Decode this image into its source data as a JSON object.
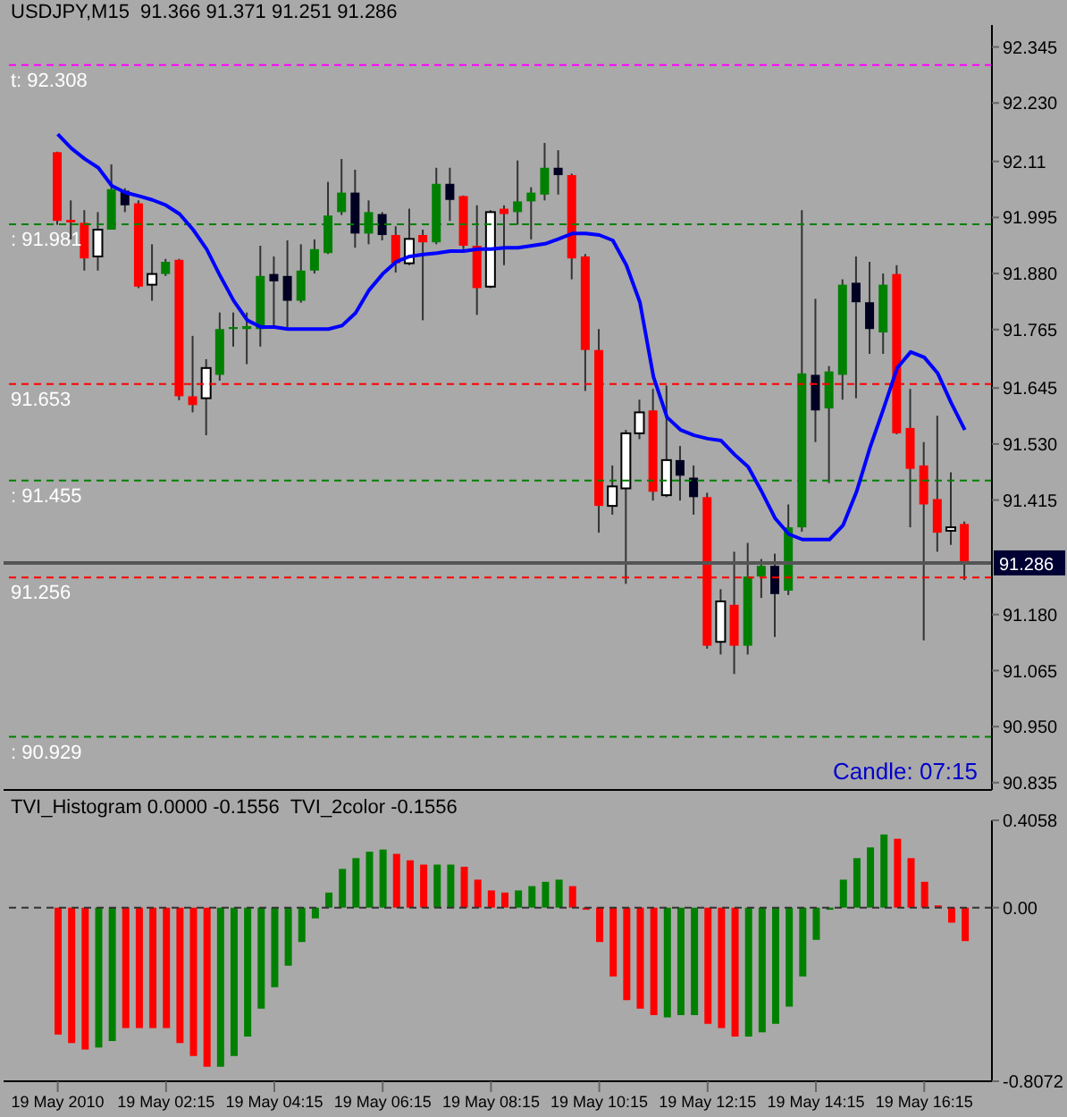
{
  "chart_data": [
    {
      "type": "candlestick",
      "title": "USDJPY,M15  91.366 91.371 91.251 91.286",
      "x": [
        "2010-05-19T00:15",
        "2010-05-19T00:30",
        "2010-05-19T00:45",
        "2010-05-19T01:00",
        "2010-05-19T01:15",
        "2010-05-19T01:30",
        "2010-05-19T01:45",
        "2010-05-19T02:00",
        "2010-05-19T02:15",
        "2010-05-19T02:30",
        "2010-05-19T02:45",
        "2010-05-19T03:00",
        "2010-05-19T03:15",
        "2010-05-19T03:30",
        "2010-05-19T03:45",
        "2010-05-19T04:00",
        "2010-05-19T04:15",
        "2010-05-19T04:30",
        "2010-05-19T04:45",
        "2010-05-19T05:00",
        "2010-05-19T05:15",
        "2010-05-19T05:30",
        "2010-05-19T05:45",
        "2010-05-19T06:00",
        "2010-05-19T06:15",
        "2010-05-19T06:30",
        "2010-05-19T06:45",
        "2010-05-19T07:00",
        "2010-05-19T07:15",
        "2010-05-19T07:30",
        "2010-05-19T07:45",
        "2010-05-19T08:00",
        "2010-05-19T08:15",
        "2010-05-19T08:30",
        "2010-05-19T08:45",
        "2010-05-19T09:00",
        "2010-05-19T09:15",
        "2010-05-19T09:30",
        "2010-05-19T09:45",
        "2010-05-19T10:00",
        "2010-05-19T10:15",
        "2010-05-19T10:30",
        "2010-05-19T10:45",
        "2010-05-19T11:00",
        "2010-05-19T11:15",
        "2010-05-19T11:30",
        "2010-05-19T11:45",
        "2010-05-19T12:00",
        "2010-05-19T12:15",
        "2010-05-19T12:30",
        "2010-05-19T12:45",
        "2010-05-19T13:00",
        "2010-05-19T13:15",
        "2010-05-19T13:30",
        "2010-05-19T13:45",
        "2010-05-19T14:00",
        "2010-05-19T14:15",
        "2010-05-19T14:30",
        "2010-05-19T14:45",
        "2010-05-19T15:00",
        "2010-05-19T15:15",
        "2010-05-19T15:30",
        "2010-05-19T15:45",
        "2010-05-19T16:00",
        "2010-05-19T16:15",
        "2010-05-19T16:30",
        "2010-05-19T16:45",
        "2010-05-19T17:00"
      ],
      "ohlc": [
        [
          92.129,
          92.13,
          91.98,
          91.988
        ],
        [
          91.99,
          92.03,
          91.95,
          91.985
        ],
        [
          91.984,
          92.01,
          91.886,
          91.911
        ],
        [
          91.915,
          92.006,
          91.886,
          91.97
        ],
        [
          91.97,
          92.104,
          91.97,
          92.053
        ],
        [
          92.05,
          92.055,
          92.006,
          92.02
        ],
        [
          92.024,
          92.03,
          91.85,
          91.853
        ],
        [
          91.857,
          91.94,
          91.824,
          91.879
        ],
        [
          91.879,
          91.91,
          91.875,
          91.904
        ],
        [
          91.908,
          91.91,
          91.62,
          91.628
        ],
        [
          91.628,
          91.752,
          91.595,
          91.61
        ],
        [
          91.624,
          91.704,
          91.548,
          91.686
        ],
        [
          91.672,
          91.8,
          91.66,
          91.766
        ],
        [
          91.766,
          91.8,
          91.73,
          91.77
        ],
        [
          91.766,
          91.8,
          91.694,
          91.772
        ],
        [
          91.766,
          91.937,
          91.73,
          91.875
        ],
        [
          91.879,
          91.915,
          91.77,
          91.864
        ],
        [
          91.875,
          91.948,
          91.77,
          91.824
        ],
        [
          91.824,
          91.94,
          91.82,
          91.886
        ],
        [
          91.886,
          91.95,
          91.88,
          91.93
        ],
        [
          91.922,
          92.068,
          91.92,
          91.999
        ],
        [
          92.006,
          92.115,
          92,
          92.046
        ],
        [
          92.046,
          92.093,
          91.933,
          91.962
        ],
        [
          91.962,
          92.03,
          91.94,
          92.006
        ],
        [
          92.002,
          92.006,
          91.948,
          91.959
        ],
        [
          91.959,
          91.977,
          91.882,
          91.901
        ],
        [
          91.901,
          92.013,
          91.897,
          91.951
        ],
        [
          91.959,
          91.97,
          91.784,
          91.944
        ],
        [
          91.944,
          92.097,
          91.94,
          92.064
        ],
        [
          92.064,
          92.097,
          91.988,
          92.031
        ],
        [
          92.039,
          92.04,
          91.93,
          91.937
        ],
        [
          91.937,
          92.02,
          91.795,
          91.85
        ],
        [
          91.853,
          92.01,
          91.85,
          92.006
        ],
        [
          92.013,
          92.02,
          91.897,
          92.002
        ],
        [
          92.006,
          92.112,
          91.98,
          92.028
        ],
        [
          92.028,
          92.057,
          91.95,
          92.046
        ],
        [
          92.042,
          92.148,
          92.03,
          92.097
        ],
        [
          92.097,
          92.133,
          92.042,
          92.082
        ],
        [
          92.082,
          92.085,
          91.868,
          91.911
        ],
        [
          91.915,
          91.92,
          91.639,
          91.723
        ],
        [
          91.723,
          91.766,
          91.348,
          91.403
        ],
        [
          91.403,
          91.486,
          91.385,
          91.443
        ],
        [
          91.439,
          91.559,
          91.243,
          91.552
        ],
        [
          91.552,
          91.621,
          91.54,
          91.595
        ],
        [
          91.599,
          91.643,
          91.414,
          91.432
        ],
        [
          91.425,
          91.65,
          91.421,
          91.497
        ],
        [
          91.497,
          91.526,
          91.414,
          91.465
        ],
        [
          91.461,
          91.486,
          91.385,
          91.421
        ],
        [
          91.421,
          91.43,
          91.11,
          91.116
        ],
        [
          91.124,
          91.232,
          91.098,
          91.207
        ],
        [
          91.2,
          91.309,
          91.058,
          91.116
        ],
        [
          91.116,
          91.327,
          91.098,
          91.258
        ],
        [
          91.258,
          91.294,
          91.214,
          91.28
        ],
        [
          91.28,
          91.305,
          91.134,
          91.222
        ],
        [
          91.229,
          91.406,
          91.22,
          91.359
        ],
        [
          91.359,
          92.01,
          91.35,
          91.675
        ],
        [
          91.672,
          91.828,
          91.534,
          91.599
        ],
        [
          91.603,
          91.69,
          91.45,
          91.679
        ],
        [
          91.672,
          91.868,
          91.621,
          91.857
        ],
        [
          91.861,
          91.915,
          91.624,
          91.821
        ],
        [
          91.821,
          91.904,
          91.715,
          91.766
        ],
        [
          91.759,
          91.88,
          91.715,
          91.857
        ],
        [
          91.879,
          91.897,
          91.55,
          91.552
        ],
        [
          91.563,
          91.643,
          91.359,
          91.479
        ],
        [
          91.486,
          91.534,
          91.127,
          91.406
        ],
        [
          91.417,
          91.588,
          91.309,
          91.348
        ],
        [
          91.352,
          91.472,
          91.323,
          91.359
        ],
        [
          91.366,
          91.371,
          91.251,
          91.286
        ]
      ],
      "colors": [
        "#ff0000",
        "#ff0000",
        "#ff0000",
        "#ffffff",
        "#008000",
        "#000022",
        "#ff0000",
        "#ffffff",
        "#008000",
        "#ff0000",
        "#ff0000",
        "#ffffff",
        "#008000",
        "#008000",
        "#008000",
        "#008000",
        "#000022",
        "#000022",
        "#008000",
        "#008000",
        "#008000",
        "#008000",
        "#000022",
        "#008000",
        "#000022",
        "#ff0000",
        "#ffffff",
        "#ff0000",
        "#008000",
        "#000022",
        "#ff0000",
        "#ff0000",
        "#ffffff",
        "#ff0000",
        "#008000",
        "#008000",
        "#008000",
        "#000022",
        "#ff0000",
        "#ff0000",
        "#ff0000",
        "#ffffff",
        "#ffffff",
        "#ffffff",
        "#ff0000",
        "#ffffff",
        "#000022",
        "#000022",
        "#ff0000",
        "#ffffff",
        "#ff0000",
        "#008000",
        "#008000",
        "#000022",
        "#008000",
        "#008000",
        "#000022",
        "#008000",
        "#008000",
        "#000022",
        "#000022",
        "#008000",
        "#ff0000",
        "#ff0000",
        "#ff0000",
        "#ff0000",
        "#ffffff",
        "#ff0000"
      ],
      "series": [
        {
          "type": "line",
          "color": "#0000ff",
          "values": [
            92.166,
            92.137,
            92.115,
            92.097,
            92.06,
            92.046,
            92.039,
            92.031,
            92.02,
            92.002,
            91.97,
            91.93,
            91.875,
            91.824,
            91.784,
            91.77,
            91.77,
            91.766,
            91.766,
            91.766,
            91.766,
            91.773,
            91.799,
            91.846,
            91.879,
            91.904,
            91.915,
            91.919,
            91.922,
            91.926,
            91.926,
            91.93,
            91.93,
            91.933,
            91.933,
            91.937,
            91.941,
            91.951,
            91.962,
            91.962,
            91.959,
            91.948,
            91.897,
            91.821,
            91.668,
            91.585,
            91.559,
            91.548,
            91.541,
            91.537,
            91.508,
            91.483,
            91.432,
            91.377,
            91.345,
            91.334,
            91.334,
            91.334,
            91.363,
            91.432,
            91.523,
            91.603,
            91.686,
            91.719,
            91.708,
            91.675,
            91.614,
            91.559
          ]
        }
      ],
      "xlim": [
        "2010-05-18T23:15",
        "2010-05-19T17:30"
      ],
      "ylim": [
        90.82,
        92.39
      ],
      "yticks": [
        92.345,
        {
          "value": 92.23,
          "label": "92.230"
        },
        92.11,
        91.995,
        {
          "value": 91.88,
          "label": "91.880"
        },
        91.765,
        91.645,
        {
          "value": 91.53,
          "label": "91.530"
        },
        91.415,
        {
          "value": 91.18,
          "label": "91.180"
        },
        91.065,
        {
          "value": 90.95,
          "label": "90.950"
        },
        90.835
      ],
      "tick_labels": "y",
      "ref_lines": [
        {
          "axis": "y",
          "value": 92.308,
          "label": "t: 92.308",
          "color": "#ff00ff",
          "line_style": "dashed"
        },
        {
          "axis": "y",
          "value": 91.981,
          "label": ": 91.981",
          "color": "#008000",
          "line_style": "dashed"
        },
        {
          "axis": "y",
          "value": 91.653,
          "label": "91.653",
          "color": "#ff0000",
          "line_style": "dashed"
        },
        {
          "axis": "y",
          "value": 91.455,
          "label": ": 91.455",
          "color": "#008000",
          "line_style": "dashed"
        },
        {
          "axis": "y",
          "value": 91.286,
          "label": "91.286",
          "color": "#555555",
          "line_style": "solid"
        },
        {
          "axis": "y",
          "value": 91.256,
          "label": "91.256",
          "color": "#ff0000",
          "line_style": "dashed"
        },
        {
          "axis": "y",
          "value": 90.929,
          "label": ": 90.929",
          "color": "#008000",
          "line_style": "dashed"
        }
      ],
      "annotations": [
        "Candle: 07:15"
      ]
    },
    {
      "type": "bar",
      "title": "TVI_Histogram 0.0000 -0.1556  TVI_2color -0.1556",
      "x": [
        "2010-05-19T00:15",
        "2010-05-19T00:30",
        "2010-05-19T00:45",
        "2010-05-19T01:00",
        "2010-05-19T01:15",
        "2010-05-19T01:30",
        "2010-05-19T01:45",
        "2010-05-19T02:00",
        "2010-05-19T02:15",
        "2010-05-19T02:30",
        "2010-05-19T02:45",
        "2010-05-19T03:00",
        "2010-05-19T03:15",
        "2010-05-19T03:30",
        "2010-05-19T03:45",
        "2010-05-19T04:00",
        "2010-05-19T04:15",
        "2010-05-19T04:30",
        "2010-05-19T04:45",
        "2010-05-19T05:00",
        "2010-05-19T05:15",
        "2010-05-19T05:30",
        "2010-05-19T05:45",
        "2010-05-19T06:00",
        "2010-05-19T06:15",
        "2010-05-19T06:30",
        "2010-05-19T06:45",
        "2010-05-19T07:00",
        "2010-05-19T07:15",
        "2010-05-19T07:30",
        "2010-05-19T07:45",
        "2010-05-19T08:00",
        "2010-05-19T08:15",
        "2010-05-19T08:30",
        "2010-05-19T08:45",
        "2010-05-19T09:00",
        "2010-05-19T09:15",
        "2010-05-19T09:30",
        "2010-05-19T09:45",
        "2010-05-19T10:00",
        "2010-05-19T10:15",
        "2010-05-19T10:30",
        "2010-05-19T10:45",
        "2010-05-19T11:00",
        "2010-05-19T11:15",
        "2010-05-19T11:30",
        "2010-05-19T11:45",
        "2010-05-19T12:00",
        "2010-05-19T12:15",
        "2010-05-19T12:30",
        "2010-05-19T12:45",
        "2010-05-19T13:00",
        "2010-05-19T13:15",
        "2010-05-19T13:30",
        "2010-05-19T13:45",
        "2010-05-19T14:00",
        "2010-05-19T14:15",
        "2010-05-19T14:30",
        "2010-05-19T14:45",
        "2010-05-19T15:00",
        "2010-05-19T15:15",
        "2010-05-19T15:30",
        "2010-05-19T15:45",
        "2010-05-19T16:00",
        "2010-05-19T16:15",
        "2010-05-19T16:30",
        "2010-05-19T16:45",
        "2010-05-19T17:00"
      ],
      "series": [
        {
          "type": "bar",
          "values": [
            -0.59,
            -0.63,
            -0.66,
            -0.65,
            -0.62,
            -0.56,
            -0.56,
            -0.56,
            -0.56,
            -0.63,
            -0.69,
            -0.74,
            -0.74,
            -0.69,
            -0.6,
            -0.47,
            -0.37,
            -0.27,
            -0.16,
            -0.05,
            0.07,
            0.18,
            0.23,
            0.26,
            0.27,
            0.25,
            0.22,
            0.2,
            0.2,
            0.2,
            0.19,
            0.13,
            0.08,
            0.07,
            0.08,
            0.1,
            0.12,
            0.13,
            0.1,
            -0.01,
            -0.16,
            -0.32,
            -0.43,
            -0.47,
            -0.5,
            -0.51,
            -0.5,
            -0.5,
            -0.54,
            -0.56,
            -0.6,
            -0.6,
            -0.58,
            -0.54,
            -0.46,
            -0.32,
            -0.15,
            -0.01,
            0.13,
            0.23,
            0.28,
            0.34,
            0.32,
            0.23,
            0.12,
            0.01,
            -0.07,
            -0.1556
          ],
          "colors": [
            "#ff0000",
            "#ff0000",
            "#ff0000",
            "#008000",
            "#008000",
            "#ff0000",
            "#ff0000",
            "#ff0000",
            "#ff0000",
            "#ff0000",
            "#ff0000",
            "#ff0000",
            "#008000",
            "#008000",
            "#008000",
            "#008000",
            "#008000",
            "#008000",
            "#008000",
            "#008000",
            "#008000",
            "#008000",
            "#008000",
            "#008000",
            "#008000",
            "#ff0000",
            "#ff0000",
            "#ff0000",
            "#008000",
            "#008000",
            "#ff0000",
            "#ff0000",
            "#ff0000",
            "#ff0000",
            "#008000",
            "#008000",
            "#008000",
            "#008000",
            "#ff0000",
            "#ff0000",
            "#ff0000",
            "#ff0000",
            "#ff0000",
            "#ff0000",
            "#ff0000",
            "#008000",
            "#008000",
            "#008000",
            "#ff0000",
            "#ff0000",
            "#ff0000",
            "#008000",
            "#008000",
            "#008000",
            "#008000",
            "#008000",
            "#008000",
            "#008000",
            "#008000",
            "#008000",
            "#008000",
            "#008000",
            "#ff0000",
            "#ff0000",
            "#ff0000",
            "#ff0000",
            "#ff0000",
            "#ff0000"
          ]
        }
      ],
      "xlim": [
        "2010-05-18T23:15",
        "2010-05-19T17:30"
      ],
      "xticks": [
        {
          "value": "2010-05-19T00:15",
          "label": "19 May 2010"
        },
        {
          "value": "2010-05-19T02:15",
          "label": "19 May 02:15"
        },
        {
          "value": "2010-05-19T04:15",
          "label": "19 May 04:15"
        },
        {
          "value": "2010-05-19T06:15",
          "label": "19 May 06:15"
        },
        {
          "value": "2010-05-19T08:15",
          "label": "19 May 08:15"
        },
        {
          "value": "2010-05-19T10:15",
          "label": "19 May 10:15"
        },
        {
          "value": "2010-05-19T12:15",
          "label": "19 May 12:15"
        },
        {
          "value": "2010-05-19T14:15",
          "label": "19 May 14:15"
        },
        {
          "value": "2010-05-19T16:15",
          "label": "19 May 16:15"
        }
      ],
      "ylim": [
        -0.8072,
        0.4058
      ],
      "yticks": [
        0.4058,
        {
          "value": 0,
          "label": "0.00"
        },
        -0.8072
      ],
      "ref_lines": [
        {
          "axis": "y",
          "value": 0,
          "color": "#333333",
          "line_style": "dashed"
        }
      ]
    }
  ]
}
